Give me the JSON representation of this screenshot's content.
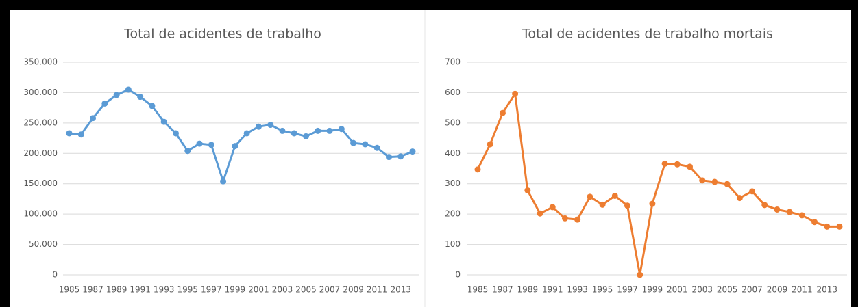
{
  "chart_data": [
    {
      "type": "line",
      "title": "Total de acidentes de trabalho",
      "categories": [
        "1985",
        null,
        "1987",
        null,
        "1989",
        null,
        "1991",
        null,
        "1993",
        null,
        "1995",
        null,
        "1997",
        null,
        "1999",
        null,
        "2001",
        null,
        "2003",
        null,
        "2005",
        null,
        "2007",
        null,
        "2009",
        null,
        "2011",
        null,
        "2013",
        null
      ],
      "series": [
        {
          "color": "#5b9bd5",
          "values": [
            233000,
            231000,
            258000,
            282000,
            296000,
            305000,
            293000,
            278000,
            252000,
            233000,
            204000,
            216000,
            214000,
            154000,
            212000,
            233000,
            244000,
            247000,
            237000,
            233000,
            228000,
            237000,
            237000,
            240000,
            217000,
            215000,
            209000,
            194000,
            195000,
            203000
          ]
        }
      ],
      "ylim": [
        0,
        350000
      ],
      "yticks": [
        0,
        {
          "value": 50000,
          "label": "50.000"
        },
        {
          "value": 100000,
          "label": "100.000"
        },
        {
          "value": 150000,
          "label": "150.000"
        },
        {
          "value": 200000,
          "label": "200.000"
        },
        {
          "value": 250000,
          "label": "250.000"
        },
        {
          "value": 300000,
          "label": "300.000"
        },
        {
          "value": 350000,
          "label": "350.000"
        }
      ],
      "grid": true
    },
    {
      "type": "line",
      "title": "Total de acidentes de trabalho mortais",
      "categories": [
        "1985",
        null,
        "1987",
        null,
        "1989",
        null,
        "1991",
        null,
        "1993",
        null,
        "1995",
        null,
        "1997",
        null,
        "1999",
        null,
        "2001",
        null,
        "2003",
        null,
        "2005",
        null,
        "2007",
        null,
        "2009",
        null,
        "2011",
        null,
        "2013",
        null
      ],
      "series": [
        {
          "color": "#ed7d31",
          "values": [
            347,
            430,
            533,
            596,
            278,
            202,
            223,
            186,
            182,
            257,
            231,
            260,
            228,
            0,
            234,
            366,
            364,
            356,
            311,
            306,
            299,
            253,
            275,
            230,
            215,
            207,
            196,
            174,
            159,
            159
          ]
        }
      ],
      "ylim": [
        0,
        700
      ],
      "yticks": [
        0,
        100,
        200,
        300,
        400,
        500,
        600,
        700
      ],
      "grid": true
    }
  ]
}
